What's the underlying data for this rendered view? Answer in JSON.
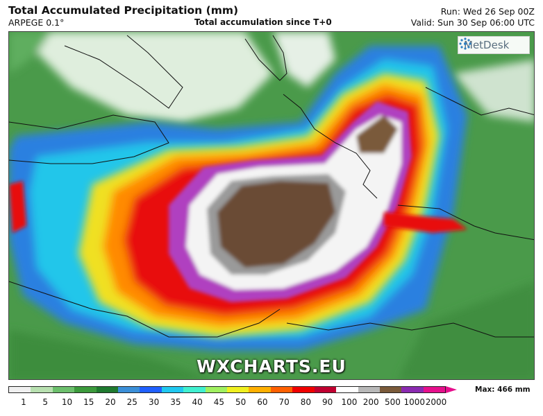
{
  "header": {
    "title": "Total Accumulated Precipitation (mm)",
    "model": "ARPEGE 0.1°",
    "subtitle": "Total accumulation since T+0",
    "run": "Run: Wed 26 Sep 00Z",
    "valid": "Valid: Sun 30 Sep 06:00 UTC"
  },
  "logo": {
    "text": "MetDesk",
    "icon": "metdesk-logo-icon"
  },
  "watermark": "WXCHARTS.EU",
  "colorbar": {
    "ticks": [
      "1",
      "5",
      "10",
      "15",
      "20",
      "25",
      "30",
      "35",
      "40",
      "45",
      "50",
      "60",
      "70",
      "80",
      "90",
      "100",
      "200",
      "500",
      "1000",
      "2000"
    ],
    "colors": [
      "#f0f0f0",
      "#b8e0b0",
      "#6cbf6c",
      "#3c9a3c",
      "#1f7a2f",
      "#3b8fd8",
      "#2060ff",
      "#20c8f0",
      "#40f0d0",
      "#a0f060",
      "#f0f020",
      "#ffb000",
      "#ff6000",
      "#f00000",
      "#c00030",
      "#ffffff",
      "#b8b8b8",
      "#7a5a3a",
      "#8a2ab0",
      "#e60f8c"
    ],
    "max_label": "Max: 466 mm"
  }
}
